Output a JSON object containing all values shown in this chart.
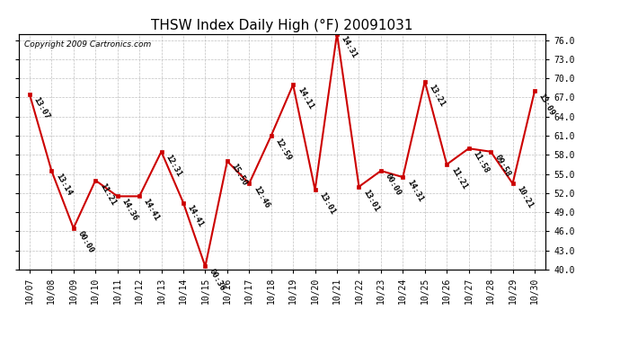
{
  "title": "THSW Index Daily High (°F) 20091031",
  "copyright": "Copyright 2009 Cartronics.com",
  "x_labels": [
    "10/07",
    "10/08",
    "10/09",
    "10/10",
    "10/11",
    "10/12",
    "10/13",
    "10/14",
    "10/15",
    "10/16",
    "10/17",
    "10/18",
    "10/19",
    "10/20",
    "10/21",
    "10/22",
    "10/23",
    "10/24",
    "10/25",
    "10/26",
    "10/27",
    "10/28",
    "10/29",
    "10/30"
  ],
  "y_values": [
    67.5,
    55.5,
    46.5,
    54.0,
    51.5,
    51.5,
    58.5,
    50.5,
    40.5,
    57.0,
    53.5,
    61.0,
    69.0,
    52.5,
    77.0,
    53.0,
    55.5,
    54.5,
    69.5,
    56.5,
    59.0,
    58.5,
    53.5,
    68.0
  ],
  "time_labels": [
    "13:07",
    "13:14",
    "00:00",
    "11:21",
    "14:36",
    "14:41",
    "12:31",
    "14:41",
    "00:36",
    "15:50",
    "12:46",
    "12:59",
    "14:11",
    "13:01",
    "14:31",
    "13:01",
    "00:00",
    "14:31",
    "13:21",
    "11:21",
    "11:58",
    "09:58",
    "10:21",
    "13:09"
  ],
  "ylim": [
    40.0,
    77.0
  ],
  "yticks": [
    40.0,
    43.0,
    46.0,
    49.0,
    52.0,
    55.0,
    58.0,
    61.0,
    64.0,
    67.0,
    70.0,
    73.0,
    76.0
  ],
  "line_color": "#cc0000",
  "marker_color": "#cc0000",
  "bg_color": "#ffffff",
  "grid_color": "#c0c0c0",
  "title_fontsize": 11,
  "label_fontsize": 6.5,
  "tick_fontsize": 7,
  "copyright_fontsize": 6.5
}
